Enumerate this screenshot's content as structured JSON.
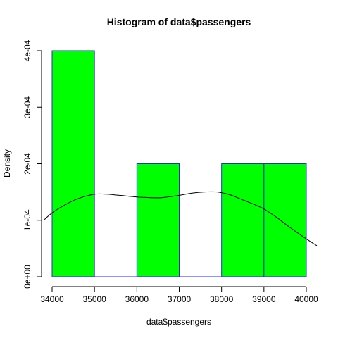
{
  "chart_data": {
    "type": "bar",
    "title": "Histogram of data$passengers",
    "xlabel": "data$passengers",
    "ylabel": "Density",
    "xlim": [
      34000,
      40000
    ],
    "ylim": [
      0,
      0.0004
    ],
    "x_ticks": [
      34000,
      35000,
      36000,
      37000,
      38000,
      39000,
      40000
    ],
    "x_tick_labels": [
      "34000",
      "35000",
      "36000",
      "37000",
      "38000",
      "39000",
      "40000"
    ],
    "y_ticks": [
      0,
      0.0001,
      0.0002,
      0.0003,
      0.0004
    ],
    "y_tick_labels": [
      "0e+00",
      "1e-04",
      "2e-04",
      "3e-04",
      "4e-04"
    ],
    "bins": [
      {
        "from": 34000,
        "to": 35000,
        "density": 0.0004
      },
      {
        "from": 35000,
        "to": 36000,
        "density": 0
      },
      {
        "from": 36000,
        "to": 37000,
        "density": 0.0002
      },
      {
        "from": 37000,
        "to": 38000,
        "density": 0
      },
      {
        "from": 38000,
        "to": 39000,
        "density": 0.0002
      },
      {
        "from": 39000,
        "to": 40000,
        "density": 0.0002
      }
    ],
    "density_curve": {
      "x": [
        33800,
        34000,
        34300,
        34600,
        35000,
        35300,
        35600,
        36000,
        36300,
        36600,
        37000,
        37300,
        37600,
        37900,
        38200,
        38500,
        38800,
        39000,
        39300,
        39600,
        40000,
        40250
      ],
      "y": [
        0.0001,
        0.000113,
        0.000127,
        0.000138,
        0.000146,
        0.000146,
        0.000144,
        0.000141,
        0.00014,
        0.00014,
        0.000144,
        0.000148,
        0.00015,
        0.00015,
        0.000145,
        0.000136,
        0.000127,
        0.00012,
        0.000105,
        8.8e-05,
        6.7e-05,
        5.5e-05
      ]
    },
    "colors": {
      "bar_fill": "#00ff00",
      "bar_border": "#2a2ad8",
      "curve": "#000000"
    }
  }
}
